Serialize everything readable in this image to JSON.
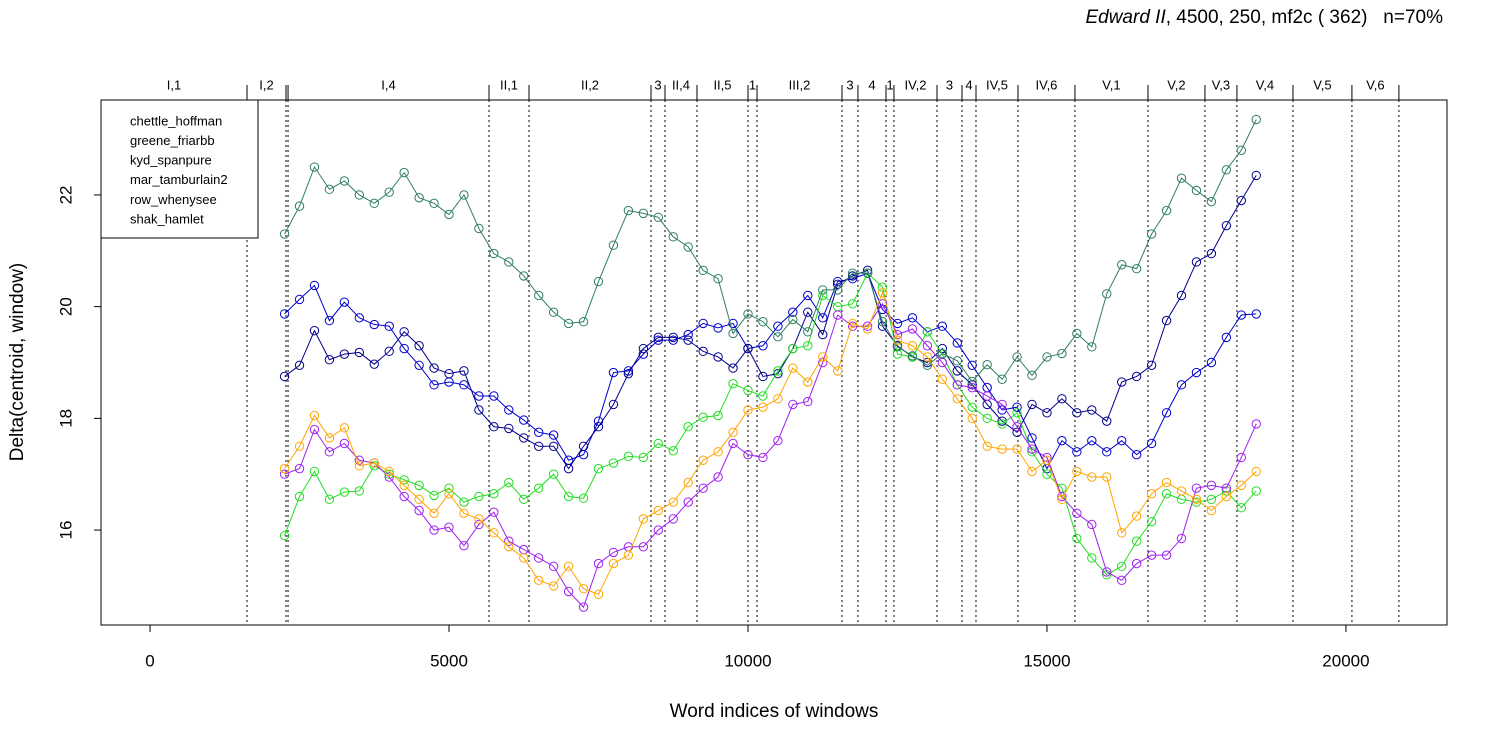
{
  "chart_data": {
    "type": "line",
    "title_italic": "Edward II",
    "title_rest": ", 4500, 250, mf2c ( 362)   n=70%",
    "x_label": "Word indices of windows",
    "y_label": "Delta(centroid, window)",
    "xlim": [
      -820,
      21690
    ],
    "ylim": [
      14.3,
      23.7
    ],
    "xticks": [
      0,
      5000,
      10000,
      15000,
      20000
    ],
    "yticks": [
      16,
      18,
      20,
      22
    ],
    "legend": "top-left",
    "scene_labels": [
      "I,1",
      "I,2",
      null,
      "I,4",
      "II,1",
      "II,2",
      "3",
      "II,4",
      "II,5",
      "1",
      "III,2",
      "3",
      "4",
      "1",
      "IV,2",
      "3",
      "4",
      "IV,5",
      "IV,6",
      "V,1",
      "V,2",
      "V,3",
      "V,4",
      "V,5",
      "V,6"
    ],
    "scene_ends": [
      1622,
      2274,
      2308,
      5669,
      6338,
      8378,
      8612,
      9147,
      10000,
      10151,
      11572,
      11839,
      12308,
      12441,
      13161,
      13579,
      13813,
      14515,
      15468,
      16689,
      17642,
      18177,
      19114,
      20100,
      20886
    ],
    "x": [
      2250,
      2500,
      2750,
      3000,
      3250,
      3500,
      3750,
      4000,
      4250,
      4500,
      4750,
      5000,
      5250,
      5500,
      5750,
      6000,
      6250,
      6500,
      6750,
      7000,
      7250,
      7500,
      7750,
      8000,
      8250,
      8500,
      8750,
      9000,
      9250,
      9500,
      9750,
      10000,
      10250,
      10500,
      10750,
      11000,
      11250,
      11500,
      11750,
      12000,
      12250,
      12500,
      12750,
      13000,
      13250,
      13500,
      13750,
      14000,
      14250,
      14500,
      14750,
      15000,
      15250,
      15500,
      15750,
      16000,
      16250,
      16500,
      16750,
      17000,
      17250,
      17500,
      17750,
      18000,
      18250,
      18500
    ],
    "series": [
      {
        "name": "chettle_hoffman",
        "color": "#0000cd",
        "values": [
          19.87,
          20.13,
          20.38,
          19.75,
          20.08,
          19.8,
          19.68,
          19.65,
          19.25,
          18.95,
          18.6,
          18.65,
          18.6,
          18.4,
          18.4,
          18.15,
          17.97,
          17.75,
          17.7,
          17.25,
          17.35,
          17.95,
          18.82,
          18.85,
          19.15,
          19.4,
          19.4,
          19.5,
          19.7,
          19.62,
          19.7,
          19.25,
          19.3,
          19.65,
          19.9,
          20.2,
          19.8,
          20.45,
          20.5,
          20.6,
          19.95,
          19.7,
          19.8,
          19.55,
          19.65,
          19.35,
          18.95,
          18.55,
          18.15,
          18.2,
          17.65,
          17.1,
          17.6,
          17.4,
          17.6,
          17.4,
          17.6,
          17.35,
          17.55,
          18.1,
          18.6,
          18.82,
          19.0,
          19.45,
          19.85,
          19.87
        ]
      },
      {
        "name": "greene_friarbb",
        "color": "#00008b",
        "values": [
          18.75,
          18.95,
          19.57,
          19.05,
          19.15,
          19.18,
          18.97,
          19.2,
          19.55,
          19.3,
          18.9,
          18.8,
          18.85,
          18.15,
          17.85,
          17.82,
          17.65,
          17.5,
          17.5,
          17.1,
          17.5,
          17.85,
          18.25,
          18.8,
          19.25,
          19.45,
          19.45,
          19.4,
          19.2,
          19.1,
          18.9,
          19.25,
          18.75,
          18.8,
          19.25,
          19.9,
          19.5,
          20.4,
          20.55,
          20.65,
          19.65,
          19.3,
          19.1,
          19.0,
          19.25,
          18.85,
          18.6,
          18.25,
          17.95,
          17.75,
          18.25,
          18.1,
          18.35,
          18.1,
          18.15,
          17.95,
          18.65,
          18.75,
          18.95,
          19.75,
          20.2,
          20.8,
          20.95,
          21.45,
          21.9,
          22.35
        ]
      },
      {
        "name": "kyd_spanpure",
        "color": "#22dd22",
        "values": [
          15.9,
          16.6,
          17.05,
          16.55,
          16.68,
          16.7,
          17.15,
          17.0,
          16.9,
          16.8,
          16.62,
          16.75,
          16.5,
          16.6,
          16.65,
          16.85,
          16.55,
          16.75,
          17.0,
          16.6,
          16.57,
          17.1,
          17.2,
          17.32,
          17.3,
          17.55,
          17.42,
          17.85,
          18.02,
          18.05,
          18.62,
          18.5,
          18.4,
          18.85,
          19.25,
          19.3,
          20.2,
          20.0,
          20.05,
          20.6,
          20.35,
          19.15,
          19.1,
          19.55,
          19.15,
          18.6,
          18.2,
          18.0,
          17.9,
          18.1,
          17.4,
          17.0,
          16.75,
          15.85,
          15.5,
          15.2,
          15.35,
          15.8,
          16.15,
          16.65,
          16.55,
          16.5,
          16.55,
          16.7,
          16.4,
          16.7
        ]
      },
      {
        "name": "mar_tamburlain2",
        "color": "#2f7f5f",
        "values": [
          21.3,
          21.8,
          22.5,
          22.1,
          22.25,
          22.0,
          21.85,
          22.05,
          22.4,
          21.95,
          21.85,
          21.65,
          22.0,
          21.4,
          20.95,
          20.8,
          20.55,
          20.2,
          19.9,
          19.7,
          19.73,
          20.45,
          21.1,
          21.72,
          21.67,
          21.6,
          21.25,
          21.07,
          20.65,
          20.5,
          19.52,
          19.87,
          19.73,
          19.46,
          19.77,
          19.55,
          20.3,
          20.3,
          20.6,
          20.6,
          19.73,
          19.28,
          19.12,
          18.95,
          19.16,
          19.03,
          18.66,
          18.96,
          18.7,
          19.1,
          18.77,
          19.1,
          19.16,
          19.52,
          19.28,
          20.23,
          20.75,
          20.68,
          21.3,
          21.72,
          22.3,
          22.08,
          21.88,
          22.45,
          22.8,
          23.35
        ]
      },
      {
        "name": "row_whenysee",
        "color": "#a020f0",
        "values": [
          17.0,
          17.1,
          17.8,
          17.4,
          17.55,
          17.25,
          17.2,
          16.95,
          16.6,
          16.35,
          16.0,
          16.05,
          15.72,
          16.1,
          16.32,
          15.8,
          15.65,
          15.5,
          15.35,
          14.9,
          14.62,
          15.4,
          15.6,
          15.7,
          15.7,
          16.0,
          16.2,
          16.5,
          16.75,
          16.95,
          17.55,
          17.35,
          17.3,
          17.6,
          18.25,
          18.3,
          19.0,
          19.85,
          19.65,
          19.65,
          20.05,
          19.5,
          19.6,
          19.3,
          19.0,
          18.6,
          18.55,
          18.4,
          18.25,
          17.85,
          17.45,
          17.3,
          16.6,
          16.3,
          16.1,
          15.25,
          15.1,
          15.4,
          15.55,
          15.55,
          15.85,
          16.75,
          16.8,
          16.75,
          17.3,
          17.9
        ]
      },
      {
        "name": "shak_hamlet",
        "color": "#ffa500",
        "values": [
          17.1,
          17.5,
          18.05,
          17.65,
          17.83,
          17.15,
          17.2,
          17.05,
          16.8,
          16.55,
          16.3,
          16.65,
          16.3,
          16.2,
          15.95,
          15.7,
          15.5,
          15.1,
          15.0,
          15.35,
          14.95,
          14.85,
          15.4,
          15.55,
          16.2,
          16.35,
          16.5,
          16.85,
          17.25,
          17.4,
          17.75,
          18.15,
          18.2,
          18.35,
          18.9,
          18.65,
          19.1,
          18.85,
          19.7,
          19.6,
          20.25,
          19.4,
          19.3,
          19.1,
          18.7,
          18.35,
          18.0,
          17.5,
          17.45,
          17.45,
          17.05,
          17.25,
          16.55,
          17.05,
          16.95,
          16.95,
          15.95,
          16.25,
          16.65,
          16.85,
          16.7,
          16.55,
          16.35,
          16.6,
          16.8,
          17.05
        ]
      }
    ]
  }
}
